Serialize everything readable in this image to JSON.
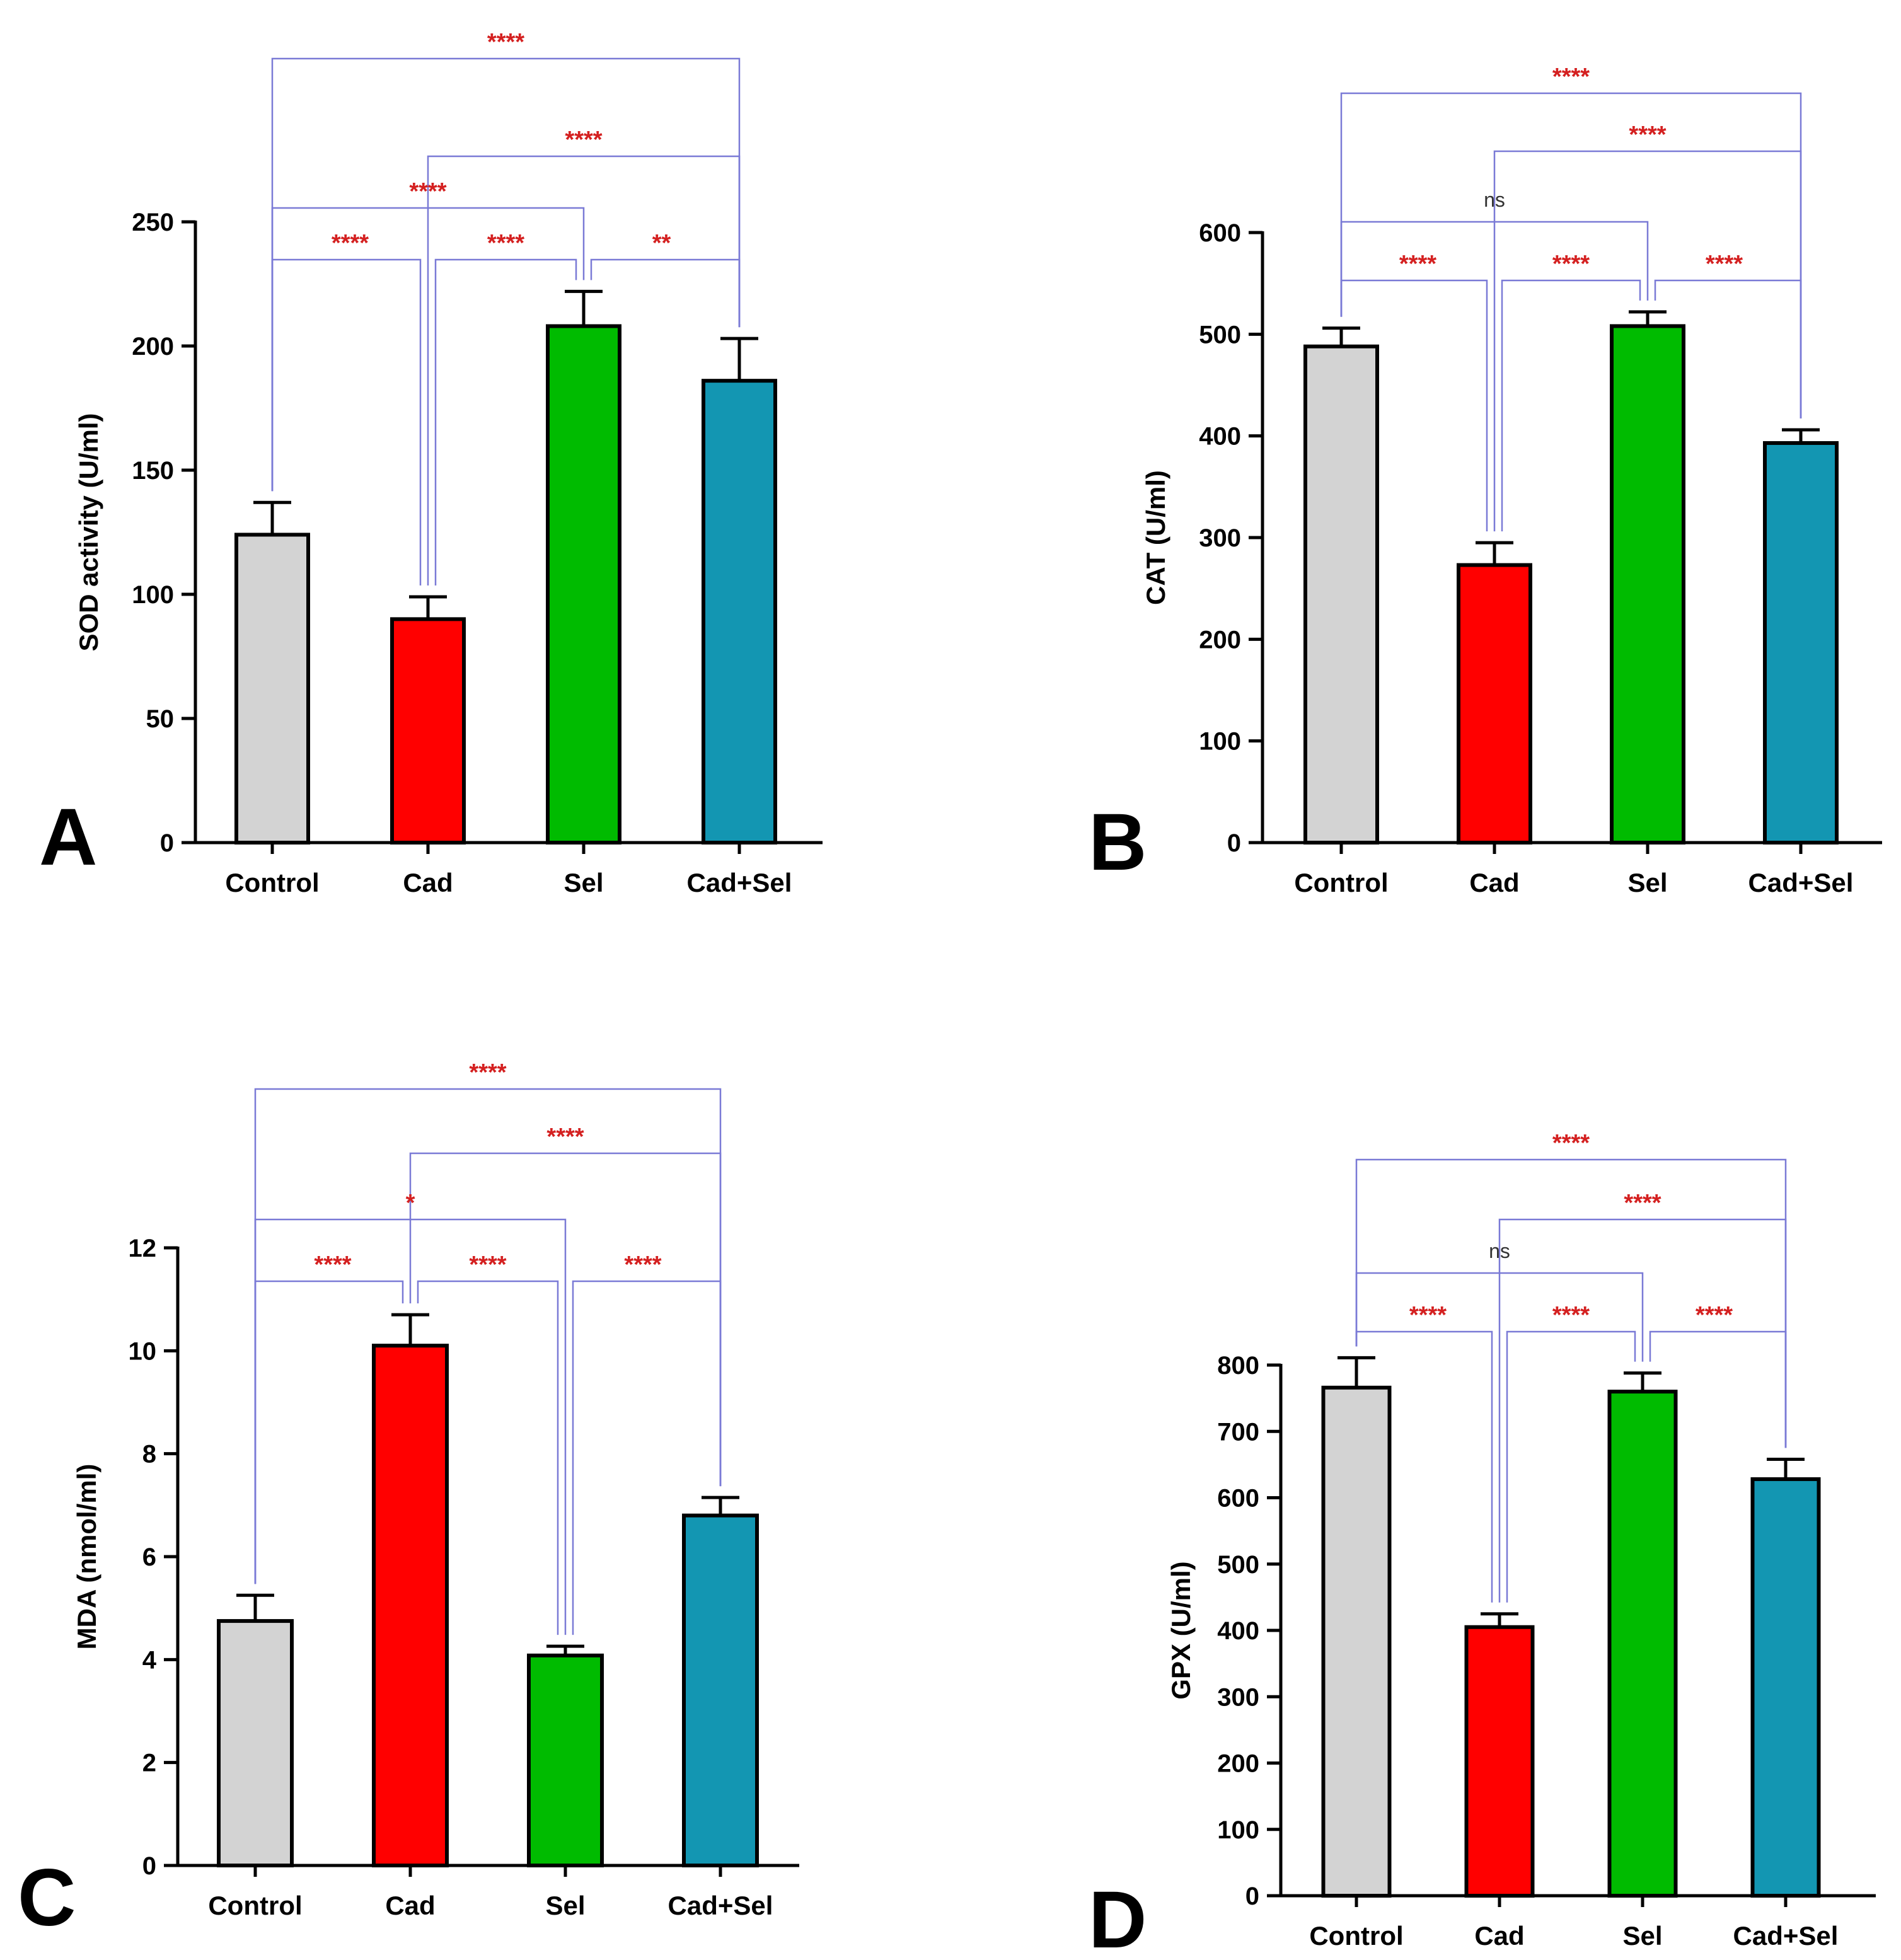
{
  "colors": {
    "bracket": "#7a7ad6",
    "significance": "#d42020",
    "ns": "#333333",
    "axis": "#000000"
  },
  "chart_data": [
    {
      "panel": "A",
      "type": "bar",
      "ylabel": "SOD activity (U/ml)",
      "categories": [
        "Control",
        "Cad",
        "Sel",
        "Cad+Sel"
      ],
      "values": [
        124,
        90,
        208,
        186
      ],
      "errors": [
        13,
        9,
        14,
        17
      ],
      "bar_colors": [
        "#d3d3d3",
        "#ff0000",
        "#00bb00",
        "#1396b2"
      ],
      "ylim": [
        0,
        250
      ],
      "yticks": [
        0,
        50,
        100,
        150,
        200,
        250
      ],
      "comparisons": [
        {
          "from": 0,
          "to": 3,
          "label": "****",
          "level": 4
        },
        {
          "from": 1,
          "to": 3,
          "label": "****",
          "level": 3
        },
        {
          "from": 0,
          "to": 2,
          "label": "****",
          "level": 2
        },
        {
          "from": 0,
          "to": 1,
          "label": "****",
          "level": 1
        },
        {
          "from": 1,
          "to": 2,
          "label": "****",
          "level": 1
        },
        {
          "from": 2,
          "to": 3,
          "label": "**",
          "level": 1
        }
      ]
    },
    {
      "panel": "B",
      "type": "bar",
      "ylabel": "CAT (U/ml)",
      "categories": [
        "Control",
        "Cad",
        "Sel",
        "Cad+Sel"
      ],
      "values": [
        488,
        273,
        508,
        393
      ],
      "errors": [
        18,
        22,
        14,
        13
      ],
      "bar_colors": [
        "#d3d3d3",
        "#ff0000",
        "#00bb00",
        "#1396b2"
      ],
      "ylim": [
        0,
        600
      ],
      "yticks": [
        0,
        100,
        200,
        300,
        400,
        500,
        600
      ],
      "comparisons": [
        {
          "from": 0,
          "to": 3,
          "label": "****",
          "level": 4
        },
        {
          "from": 1,
          "to": 3,
          "label": "****",
          "level": 3
        },
        {
          "from": 0,
          "to": 2,
          "label": "ns",
          "level": 2
        },
        {
          "from": 0,
          "to": 1,
          "label": "****",
          "level": 1
        },
        {
          "from": 1,
          "to": 2,
          "label": "****",
          "level": 1
        },
        {
          "from": 2,
          "to": 3,
          "label": "****",
          "level": 1
        }
      ]
    },
    {
      "panel": "C",
      "type": "bar",
      "ylabel": "MDA (nmol/ml)",
      "categories": [
        "Control",
        "Cad",
        "Sel",
        "Cad+Sel"
      ],
      "values": [
        4.75,
        10.1,
        4.08,
        6.8
      ],
      "errors": [
        0.5,
        0.6,
        0.18,
        0.35
      ],
      "bar_colors": [
        "#d3d3d3",
        "#ff0000",
        "#00bb00",
        "#1396b2"
      ],
      "ylim": [
        0,
        12
      ],
      "yticks": [
        0,
        2,
        4,
        6,
        8,
        10,
        12
      ],
      "comparisons": [
        {
          "from": 0,
          "to": 3,
          "label": "****",
          "level": 4
        },
        {
          "from": 1,
          "to": 3,
          "label": "****",
          "level": 3
        },
        {
          "from": 0,
          "to": 2,
          "label": "*",
          "level": 2
        },
        {
          "from": 0,
          "to": 1,
          "label": "****",
          "level": 1
        },
        {
          "from": 1,
          "to": 2,
          "label": "****",
          "level": 1
        },
        {
          "from": 2,
          "to": 3,
          "label": "****",
          "level": 1
        }
      ]
    },
    {
      "panel": "D",
      "type": "bar",
      "ylabel": "GPX (U/ml)",
      "categories": [
        "Control",
        "Cad",
        "Sel",
        "Cad+Sel"
      ],
      "values": [
        766,
        405,
        760,
        628
      ],
      "errors": [
        45,
        20,
        28,
        30
      ],
      "bar_colors": [
        "#d3d3d3",
        "#ff0000",
        "#00bb00",
        "#1396b2"
      ],
      "ylim": [
        0,
        800
      ],
      "yticks": [
        0,
        100,
        200,
        300,
        400,
        500,
        600,
        700,
        800
      ],
      "comparisons": [
        {
          "from": 0,
          "to": 3,
          "label": "****",
          "level": 4
        },
        {
          "from": 1,
          "to": 3,
          "label": "****",
          "level": 3
        },
        {
          "from": 0,
          "to": 2,
          "label": "ns",
          "level": 2
        },
        {
          "from": 0,
          "to": 1,
          "label": "****",
          "level": 1
        },
        {
          "from": 1,
          "to": 2,
          "label": "****",
          "level": 1
        },
        {
          "from": 2,
          "to": 3,
          "label": "****",
          "level": 1
        }
      ]
    }
  ]
}
